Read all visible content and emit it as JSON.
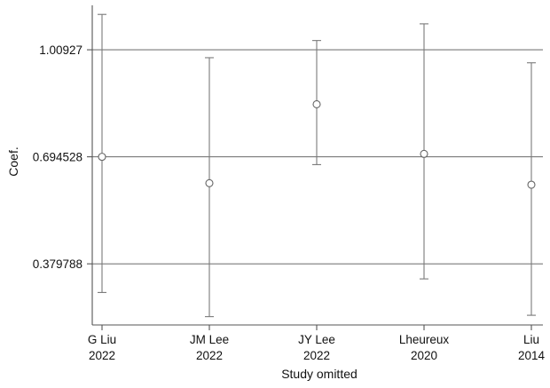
{
  "chart_data": {
    "type": "scatter",
    "subtype": "error-bars",
    "title": "",
    "xlabel": "Study omitted",
    "ylabel": "Coef.",
    "categories": [
      [
        "G Liu",
        "2022"
      ],
      [
        "JM Lee",
        "2022"
      ],
      [
        "JY Lee",
        "2022"
      ],
      [
        "Lheureux",
        "2020"
      ],
      [
        "Liu",
        "2014"
      ]
    ],
    "estimates": [
      0.6945,
      0.617,
      0.849,
      0.703,
      0.6125
    ],
    "ci_lower": [
      0.2955,
      0.2245,
      0.6715,
      0.3355,
      0.2285
    ],
    "ci_upper": [
      1.1133,
      0.986,
      1.0365,
      1.0855,
      0.971
    ],
    "yticks": [
      0.379788,
      0.694528,
      1.00927
    ],
    "ytick_labels": [
      "0.379788",
      "0.694528",
      "1.00927"
    ],
    "ylim": [
      0.2,
      1.14
    ],
    "grid": true,
    "legend": "none"
  }
}
